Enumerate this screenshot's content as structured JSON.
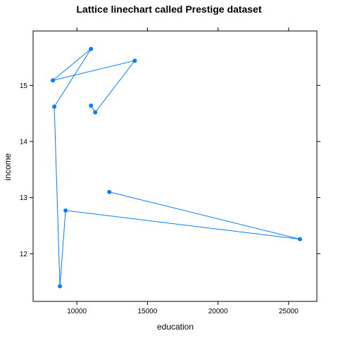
{
  "chart_data": {
    "type": "line",
    "title": "Lattice linechart called Prestige dataset",
    "xlabel": "education",
    "ylabel": "income",
    "xlim": [
      6900,
      27000
    ],
    "ylim": [
      11.15,
      15.97
    ],
    "x_ticks": [
      10000,
      15000,
      20000,
      25000
    ],
    "y_ticks": [
      12,
      13,
      14,
      15
    ],
    "x_tick_labels": [
      "10000",
      "15000",
      "20000",
      "25000"
    ],
    "y_tick_labels": [
      "12",
      "13",
      "14",
      "15"
    ],
    "grid": false,
    "color": "#0080ff",
    "series": [
      {
        "x": [
          12300,
          25800,
          9200,
          8800,
          8400,
          11000,
          8300,
          14100,
          11300,
          11000
        ],
        "y": [
          13.1,
          12.26,
          12.77,
          11.42,
          14.62,
          15.65,
          15.09,
          15.44,
          14.52,
          14.64
        ]
      }
    ]
  }
}
